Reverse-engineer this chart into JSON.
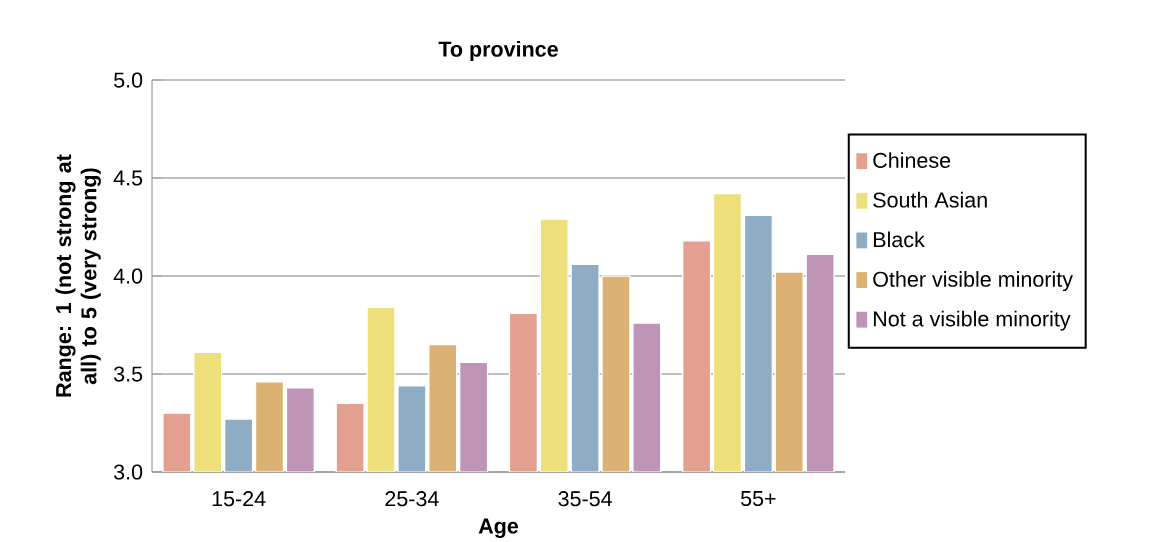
{
  "chart_data": {
    "type": "bar",
    "title": "To province",
    "xlabel": "Age",
    "ylabel": "Range: 1 (not strong at all) to 5 (very strong)",
    "categories": [
      "15-24",
      "25-34",
      "35-54",
      "55+"
    ],
    "series": [
      {
        "name": "Chinese",
        "color": "#e3a090",
        "values": [
          3.3,
          3.35,
          3.81,
          4.18
        ]
      },
      {
        "name": "South Asian",
        "color": "#ede07a",
        "values": [
          3.61,
          3.84,
          4.29,
          4.42
        ]
      },
      {
        "name": "Black",
        "color": "#8eadc4",
        "values": [
          3.27,
          3.44,
          4.06,
          4.31
        ]
      },
      {
        "name": "Other visible minority",
        "color": "#dbb274",
        "values": [
          3.46,
          3.65,
          4.0,
          4.02
        ]
      },
      {
        "name": "Not a visible minority",
        "color": "#bf95b7",
        "values": [
          3.43,
          3.56,
          3.76,
          4.11
        ]
      }
    ],
    "ylim": [
      3.0,
      5.0
    ],
    "yticks": [
      {
        "value": 3.0,
        "label": "3.0"
      },
      {
        "value": 3.5,
        "label": "3.5"
      },
      {
        "value": 4.0,
        "label": "4.0"
      },
      {
        "value": 4.5,
        "label": "4.5"
      },
      {
        "value": 5.0,
        "label": "5.0"
      }
    ],
    "grid": "y",
    "legend": "right"
  }
}
